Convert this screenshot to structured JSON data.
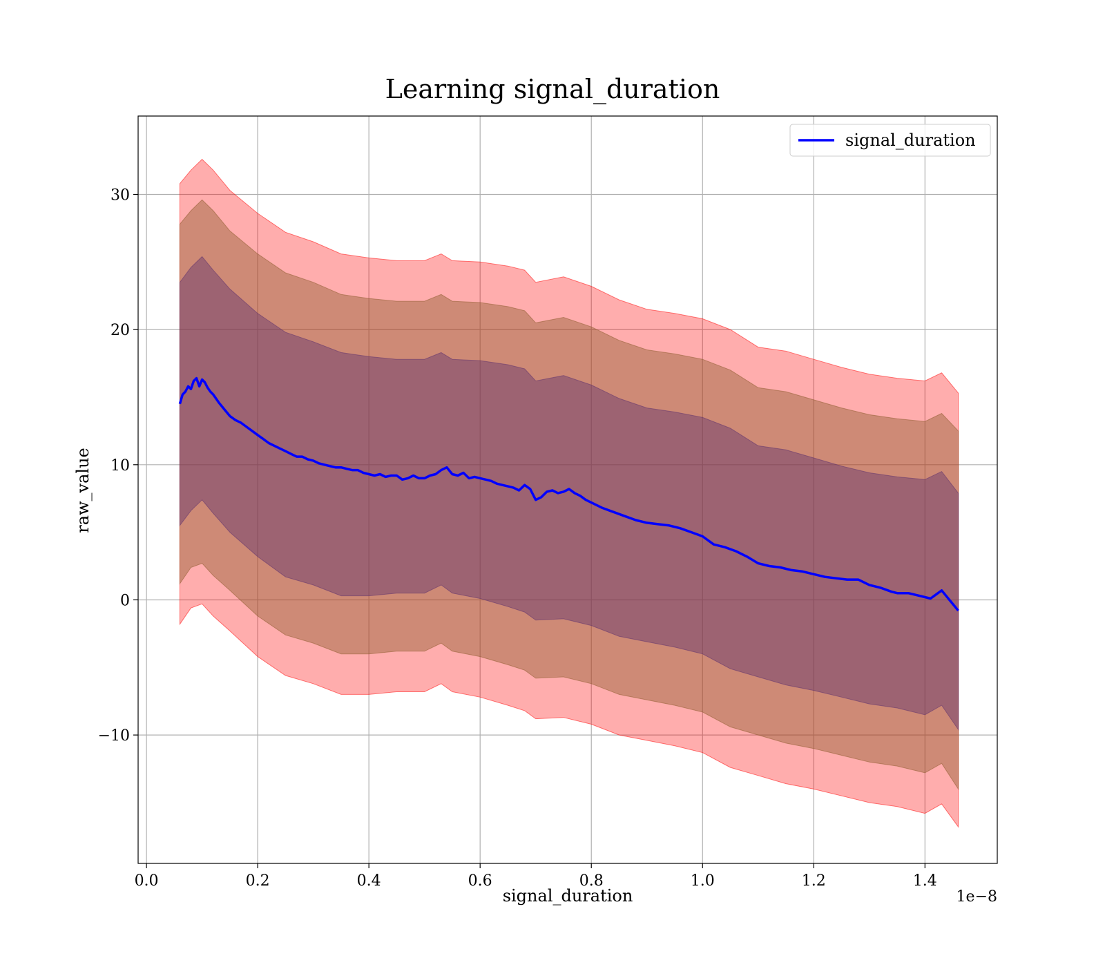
{
  "chart_data": {
    "type": "line",
    "title": "Learning signal_duration",
    "xlabel": "signal_duration",
    "ylabel": "raw_value",
    "x_offset_label": "1e−8",
    "x_scale": 1e-08,
    "xlim": [
      -0.015,
      1.53
    ],
    "ylim": [
      -19.5,
      35.8
    ],
    "x_ticks": [
      0.0,
      0.2,
      0.4,
      0.6,
      0.8,
      1.0,
      1.2,
      1.4
    ],
    "x_tick_labels": [
      "0.0",
      "0.2",
      "0.4",
      "0.6",
      "0.8",
      "1.0",
      "1.2",
      "1.4"
    ],
    "y_ticks": [
      -10,
      0,
      10,
      20,
      30
    ],
    "y_tick_labels": [
      "−10",
      "0",
      "10",
      "20",
      "30"
    ],
    "grid": true,
    "legend": {
      "position": "top-right",
      "entries": [
        "signal_duration"
      ]
    },
    "series": [
      {
        "name": "signal_duration",
        "color": "#0000ff",
        "x": [
          0.06,
          0.065,
          0.07,
          0.075,
          0.08,
          0.085,
          0.09,
          0.095,
          0.1,
          0.105,
          0.11,
          0.115,
          0.12,
          0.13,
          0.14,
          0.15,
          0.16,
          0.17,
          0.18,
          0.19,
          0.2,
          0.21,
          0.22,
          0.23,
          0.24,
          0.25,
          0.26,
          0.27,
          0.28,
          0.29,
          0.3,
          0.31,
          0.32,
          0.33,
          0.34,
          0.35,
          0.36,
          0.37,
          0.38,
          0.39,
          0.4,
          0.41,
          0.42,
          0.43,
          0.44,
          0.45,
          0.46,
          0.47,
          0.48,
          0.49,
          0.5,
          0.51,
          0.52,
          0.53,
          0.54,
          0.55,
          0.56,
          0.57,
          0.58,
          0.59,
          0.6,
          0.61,
          0.62,
          0.63,
          0.64,
          0.65,
          0.66,
          0.67,
          0.68,
          0.69,
          0.7,
          0.71,
          0.72,
          0.73,
          0.74,
          0.75,
          0.76,
          0.77,
          0.78,
          0.79,
          0.8,
          0.82,
          0.84,
          0.86,
          0.88,
          0.9,
          0.92,
          0.94,
          0.96,
          0.98,
          1.0,
          1.02,
          1.04,
          1.06,
          1.08,
          1.1,
          1.12,
          1.14,
          1.16,
          1.18,
          1.2,
          1.22,
          1.24,
          1.26,
          1.28,
          1.3,
          1.32,
          1.34,
          1.35,
          1.37,
          1.39,
          1.41,
          1.43,
          1.46
        ],
        "y": [
          14.5,
          15.2,
          15.4,
          15.8,
          15.6,
          16.2,
          16.4,
          15.8,
          16.3,
          16.1,
          15.7,
          15.4,
          15.2,
          14.6,
          14.1,
          13.6,
          13.3,
          13.1,
          12.8,
          12.5,
          12.2,
          11.9,
          11.6,
          11.4,
          11.2,
          11.0,
          10.8,
          10.6,
          10.6,
          10.4,
          10.3,
          10.1,
          10.0,
          9.9,
          9.8,
          9.8,
          9.7,
          9.6,
          9.6,
          9.4,
          9.3,
          9.2,
          9.3,
          9.1,
          9.2,
          9.2,
          8.9,
          9.0,
          9.2,
          9.0,
          9.0,
          9.2,
          9.3,
          9.6,
          9.8,
          9.3,
          9.2,
          9.4,
          9.0,
          9.1,
          9.0,
          8.9,
          8.8,
          8.6,
          8.5,
          8.4,
          8.3,
          8.1,
          8.5,
          8.2,
          7.4,
          7.6,
          8.0,
          8.1,
          7.9,
          8.0,
          8.2,
          7.9,
          7.7,
          7.4,
          7.2,
          6.8,
          6.5,
          6.2,
          5.9,
          5.7,
          5.6,
          5.5,
          5.3,
          5.0,
          4.7,
          4.1,
          3.9,
          3.6,
          3.2,
          2.7,
          2.5,
          2.4,
          2.2,
          2.1,
          1.9,
          1.7,
          1.6,
          1.5,
          1.5,
          1.1,
          0.9,
          0.6,
          0.5,
          0.5,
          0.3,
          0.1,
          0.7,
          -0.8
        ]
      }
    ],
    "bands": [
      {
        "color": "#ff0000",
        "opacity": 0.32,
        "x": [
          0.06,
          0.08,
          0.1,
          0.12,
          0.15,
          0.2,
          0.25,
          0.3,
          0.35,
          0.4,
          0.45,
          0.5,
          0.53,
          0.55,
          0.6,
          0.65,
          0.68,
          0.7,
          0.75,
          0.8,
          0.85,
          0.9,
          0.95,
          1.0,
          1.05,
          1.1,
          1.15,
          1.2,
          1.25,
          1.3,
          1.35,
          1.4,
          1.43,
          1.46
        ],
        "upper": [
          30.8,
          31.8,
          32.6,
          31.8,
          30.3,
          28.6,
          27.2,
          26.5,
          25.6,
          25.3,
          25.1,
          25.1,
          25.6,
          25.1,
          25.0,
          24.7,
          24.4,
          23.5,
          23.9,
          23.2,
          22.2,
          21.5,
          21.2,
          20.8,
          20.0,
          18.7,
          18.4,
          17.8,
          17.2,
          16.7,
          16.4,
          16.2,
          16.8,
          15.3
        ],
        "lower": [
          -1.8,
          -0.6,
          -0.3,
          -1.2,
          -2.3,
          -4.2,
          -5.6,
          -6.2,
          -7.0,
          -7.0,
          -6.8,
          -6.8,
          -6.2,
          -6.8,
          -7.2,
          -7.8,
          -8.2,
          -8.8,
          -8.7,
          -9.2,
          -10.0,
          -10.4,
          -10.8,
          -11.3,
          -12.4,
          -13.0,
          -13.6,
          -14.0,
          -14.5,
          -15.0,
          -15.3,
          -15.8,
          -15.1,
          -16.8
        ]
      },
      {
        "color": "#8b5a2b",
        "opacity": 0.42,
        "x": [
          0.06,
          0.08,
          0.1,
          0.12,
          0.15,
          0.2,
          0.25,
          0.3,
          0.35,
          0.4,
          0.45,
          0.5,
          0.53,
          0.55,
          0.6,
          0.65,
          0.68,
          0.7,
          0.75,
          0.8,
          0.85,
          0.9,
          0.95,
          1.0,
          1.05,
          1.1,
          1.15,
          1.2,
          1.25,
          1.3,
          1.35,
          1.4,
          1.43,
          1.46
        ],
        "upper": [
          27.8,
          28.8,
          29.6,
          28.8,
          27.3,
          25.6,
          24.2,
          23.5,
          22.6,
          22.3,
          22.1,
          22.1,
          22.6,
          22.1,
          22.0,
          21.7,
          21.4,
          20.5,
          20.9,
          20.2,
          19.2,
          18.5,
          18.2,
          17.8,
          17.0,
          15.7,
          15.4,
          14.8,
          14.2,
          13.7,
          13.4,
          13.2,
          13.8,
          12.5
        ],
        "lower": [
          1.2,
          2.4,
          2.7,
          1.8,
          0.7,
          -1.2,
          -2.6,
          -3.2,
          -4.0,
          -4.0,
          -3.8,
          -3.8,
          -3.2,
          -3.8,
          -4.2,
          -4.8,
          -5.2,
          -5.8,
          -5.7,
          -6.2,
          -7.0,
          -7.4,
          -7.8,
          -8.3,
          -9.4,
          -10.0,
          -10.6,
          -11.0,
          -11.5,
          -12.0,
          -12.3,
          -12.8,
          -12.1,
          -14.0
        ]
      },
      {
        "color": "#5a2d6e",
        "opacity": 0.42,
        "x": [
          0.06,
          0.08,
          0.1,
          0.12,
          0.15,
          0.2,
          0.25,
          0.3,
          0.35,
          0.4,
          0.45,
          0.5,
          0.53,
          0.55,
          0.6,
          0.65,
          0.68,
          0.7,
          0.75,
          0.8,
          0.85,
          0.9,
          0.95,
          1.0,
          1.05,
          1.1,
          1.15,
          1.2,
          1.25,
          1.3,
          1.35,
          1.4,
          1.43,
          1.46
        ],
        "upper": [
          23.5,
          24.6,
          25.4,
          24.4,
          23.0,
          21.2,
          19.8,
          19.1,
          18.3,
          18.0,
          17.8,
          17.8,
          18.3,
          17.8,
          17.7,
          17.4,
          17.1,
          16.2,
          16.6,
          15.9,
          14.9,
          14.2,
          13.9,
          13.5,
          12.7,
          11.4,
          11.1,
          10.5,
          9.9,
          9.4,
          9.1,
          8.9,
          9.5,
          7.9
        ],
        "lower": [
          5.5,
          6.6,
          7.4,
          6.4,
          5.0,
          3.2,
          1.7,
          1.1,
          0.3,
          0.3,
          0.5,
          0.5,
          1.1,
          0.5,
          0.1,
          -0.5,
          -0.9,
          -1.5,
          -1.4,
          -1.9,
          -2.7,
          -3.1,
          -3.5,
          -4.0,
          -5.1,
          -5.7,
          -6.3,
          -6.7,
          -7.2,
          -7.7,
          -8.0,
          -8.5,
          -7.8,
          -9.6
        ]
      }
    ]
  }
}
